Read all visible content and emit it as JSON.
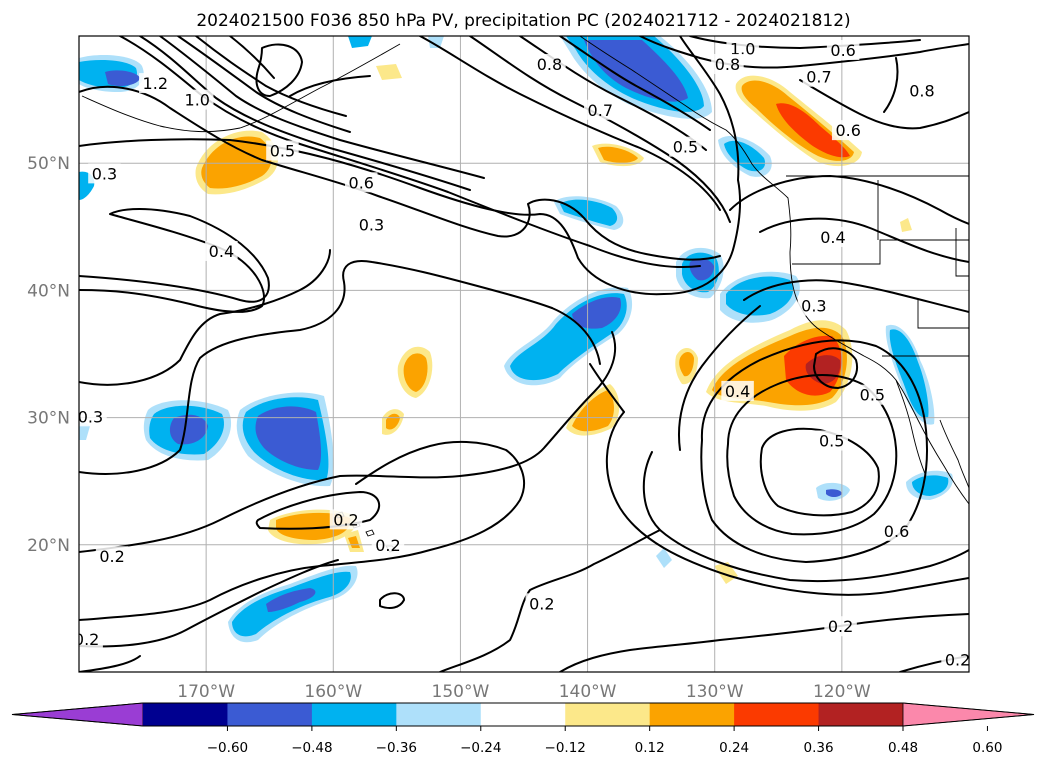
{
  "chart_data": {
    "type": "contour",
    "title": "2024021500 F036 850 hPa PV, precipitation PC (2024021712 - 2024021812)",
    "x_axis": {
      "ticks": [
        -170,
        -160,
        -150,
        -140,
        -130,
        -120
      ],
      "tick_labels": [
        "170°W",
        "160°W",
        "150°W",
        "140°W",
        "130°W",
        "120°W"
      ],
      "range": [
        -180,
        -110
      ]
    },
    "y_axis": {
      "ticks": [
        20,
        30,
        40,
        50
      ],
      "tick_labels": [
        "20°N",
        "30°N",
        "40°N",
        "50°N"
      ],
      "range": [
        10,
        60
      ]
    },
    "grid": true,
    "colorbar": {
      "ticks": [
        -0.6,
        -0.48,
        -0.36,
        -0.24,
        -0.12,
        0.12,
        0.24,
        0.36,
        0.48,
        0.6
      ],
      "tick_labels": [
        "−0.60",
        "−0.48",
        "−0.36",
        "−0.24",
        "−0.12",
        "0.12",
        "0.24",
        "0.36",
        "0.48",
        "0.60"
      ],
      "colors": [
        "#9a3dd4",
        "#000090",
        "#3b5bd3",
        "#00b2f0",
        "#aee0fa",
        "#ffffff",
        "#fce88a",
        "#fba300",
        "#fb3a00",
        "#b22222",
        "#fb88ab"
      ],
      "extend": "both"
    },
    "pv_contours": {
      "levels": [
        0.2,
        0.3,
        0.4,
        0.5,
        0.6,
        0.7,
        0.8,
        1.0,
        1.2
      ],
      "labels": [
        {
          "text": "1.2",
          "lon": -174.0,
          "lat": 56.3
        },
        {
          "text": "1.0",
          "lon": -170.7,
          "lat": 55.0
        },
        {
          "text": "0.5",
          "lon": -164.0,
          "lat": 51.0
        },
        {
          "text": "0.3",
          "lon": -178.0,
          "lat": 49.2
        },
        {
          "text": "0.6",
          "lon": -157.8,
          "lat": 48.5
        },
        {
          "text": "0.3",
          "lon": -157.0,
          "lat": 45.2
        },
        {
          "text": "0.4",
          "lon": -168.8,
          "lat": 43.1
        },
        {
          "text": "0.8",
          "lon": -143.0,
          "lat": 57.8
        },
        {
          "text": "0.7",
          "lon": -139.0,
          "lat": 54.2
        },
        {
          "text": "1.0",
          "lon": -127.8,
          "lat": 59.0
        },
        {
          "text": "0.8",
          "lon": -129.0,
          "lat": 57.8
        },
        {
          "text": "0.6",
          "lon": -119.9,
          "lat": 58.9
        },
        {
          "text": "0.7",
          "lon": -121.8,
          "lat": 56.8
        },
        {
          "text": "0.8",
          "lon": -113.7,
          "lat": 55.7
        },
        {
          "text": "0.6",
          "lon": -119.5,
          "lat": 52.6
        },
        {
          "text": "0.4",
          "lon": -120.7,
          "lat": 44.2
        },
        {
          "text": "0.3",
          "lon": -122.2,
          "lat": 38.8
        },
        {
          "text": "0.4",
          "lon": -128.2,
          "lat": 32.1
        },
        {
          "text": "0.5",
          "lon": -117.6,
          "lat": 31.8
        },
        {
          "text": "0.5",
          "lon": -120.8,
          "lat": 28.2
        },
        {
          "text": "0.6",
          "lon": -115.7,
          "lat": 21.1
        },
        {
          "text": "0.2",
          "lon": -120.1,
          "lat": 13.6
        },
        {
          "text": "0.3",
          "lon": -179.1,
          "lat": 30.1
        },
        {
          "text": "0.2",
          "lon": -155.7,
          "lat": 20.0
        },
        {
          "text": "0.2",
          "lon": -177.4,
          "lat": 19.1
        },
        {
          "text": "0.2",
          "lon": -179.4,
          "lat": 12.6
        },
        {
          "text": "0.2",
          "lon": -143.6,
          "lat": 15.4
        },
        {
          "text": "0.2",
          "lon": -110.9,
          "lat": 11.0
        },
        {
          "text": "0.2",
          "lon": -159.0,
          "lat": 22.0
        },
        {
          "text": "0.5",
          "lon": -132.3,
          "lat": 51.3
        }
      ]
    },
    "precip_regions": [
      {
        "sign": "negative",
        "lon": -176.8,
        "lat": 56.4
      },
      {
        "sign": "negative",
        "lon": -169.9,
        "lat": 29.1
      },
      {
        "sign": "negative",
        "lon": -161.3,
        "lat": 29.0
      },
      {
        "sign": "negative",
        "lon": -163.2,
        "lat": 15.0
      },
      {
        "sign": "negative",
        "lon": -140.7,
        "lat": 38.0
      },
      {
        "sign": "negative",
        "lon": -141.5,
        "lat": 35.5
      },
      {
        "sign": "negative",
        "lon": -139.8,
        "lat": 45.4
      },
      {
        "sign": "negative",
        "lon": -131.0,
        "lat": 42.0
      },
      {
        "sign": "negative",
        "lon": -126.3,
        "lat": 40.1
      },
      {
        "sign": "negative",
        "lon": -134.7,
        "lat": 57.2
      },
      {
        "sign": "negative",
        "lon": -127.6,
        "lat": 50.2
      },
      {
        "sign": "negative",
        "lon": -114.2,
        "lat": 32.0
      },
      {
        "sign": "negative",
        "lon": -114.8,
        "lat": 24.5
      },
      {
        "sign": "positive",
        "lon": -167.4,
        "lat": 49.9
      },
      {
        "sign": "positive",
        "lon": -159.3,
        "lat": 20.0
      },
      {
        "sign": "positive",
        "lon": -153.9,
        "lat": 34.8
      },
      {
        "sign": "positive",
        "lon": -139.5,
        "lat": 30.6
      },
      {
        "sign": "positive",
        "lon": -131.8,
        "lat": 34.0
      },
      {
        "sign": "positive",
        "lon": -121.6,
        "lat": 34.0
      },
      {
        "sign": "positive",
        "lon": -121.7,
        "lat": 53.8
      },
      {
        "sign": "positive",
        "lon": -137.9,
        "lat": 50.6
      }
    ]
  }
}
